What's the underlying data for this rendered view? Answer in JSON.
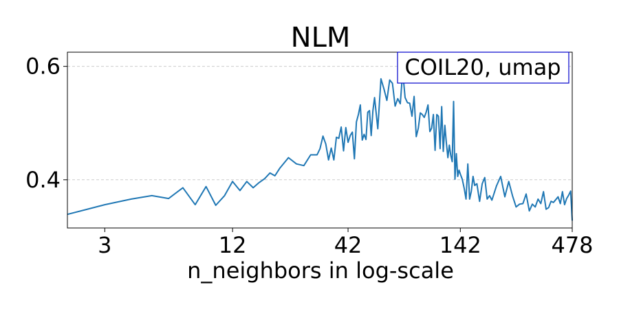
{
  "chart_data": {
    "type": "line",
    "title": "NLM",
    "xlabel": "n_neighbors in log-scale",
    "ylabel": "",
    "x_scale": "log",
    "xlim": [
      2,
      478
    ],
    "ylim": [
      0.315,
      0.625
    ],
    "x_ticks": [
      {
        "value": 3,
        "label": "3"
      },
      {
        "value": 12,
        "label": "12"
      },
      {
        "value": 42,
        "label": "42"
      },
      {
        "value": 142,
        "label": "142"
      },
      {
        "value": 478,
        "label": "478"
      }
    ],
    "y_ticks": [
      {
        "value": 0.4,
        "label": "0.4"
      },
      {
        "value": 0.6,
        "label": "0.6"
      }
    ],
    "grid": "horizontal dashed",
    "annotation": "COIL20, umap",
    "annotation_placement": "top-right",
    "line_color": "#1f77b4",
    "series": [
      {
        "x": [
          2,
          3,
          4,
          5,
          6,
          7,
          8,
          9,
          10,
          11,
          12,
          13,
          14,
          15,
          16,
          17,
          18,
          19,
          20,
          22,
          24,
          26,
          28,
          30,
          31,
          32,
          33,
          34,
          35,
          36,
          37,
          38,
          39,
          40,
          41,
          42,
          43,
          44,
          45,
          46,
          47,
          48,
          49,
          50,
          51,
          52,
          53,
          54,
          55,
          56,
          58,
          60,
          62,
          64,
          66,
          68,
          70,
          72,
          74,
          76,
          78,
          80,
          82,
          84,
          86,
          88,
          90,
          92,
          94,
          96,
          98,
          100,
          102,
          104,
          106,
          108,
          110,
          112,
          114,
          116,
          118,
          120,
          122,
          124,
          126,
          128,
          130,
          132,
          134,
          136,
          138,
          140,
          142,
          145,
          148,
          151,
          154,
          157,
          160,
          163,
          166,
          170,
          175,
          180,
          185,
          190,
          195,
          200,
          210,
          220,
          230,
          240,
          250,
          260,
          270,
          280,
          290,
          300,
          310,
          320,
          330,
          340,
          350,
          360,
          370,
          380,
          390,
          400,
          410,
          420,
          430,
          440,
          450,
          460,
          470,
          478
        ],
        "y": [
          0.339,
          0.356,
          0.366,
          0.372,
          0.367,
          0.386,
          0.356,
          0.388,
          0.355,
          0.372,
          0.397,
          0.381,
          0.397,
          0.386,
          0.395,
          0.402,
          0.412,
          0.407,
          0.42,
          0.439,
          0.428,
          0.425,
          0.444,
          0.444,
          0.455,
          0.477,
          0.463,
          0.435,
          0.456,
          0.435,
          0.475,
          0.473,
          0.493,
          0.451,
          0.492,
          0.466,
          0.478,
          0.484,
          0.437,
          0.502,
          0.515,
          0.532,
          0.47,
          0.48,
          0.471,
          0.519,
          0.522,
          0.478,
          0.522,
          0.545,
          0.49,
          0.578,
          0.56,
          0.54,
          0.576,
          0.57,
          0.53,
          0.543,
          0.534,
          0.591,
          0.545,
          0.536,
          0.535,
          0.512,
          0.547,
          0.476,
          0.491,
          0.518,
          0.515,
          0.51,
          0.519,
          0.532,
          0.485,
          0.491,
          0.515,
          0.452,
          0.515,
          0.512,
          0.455,
          0.529,
          0.45,
          0.496,
          0.465,
          0.439,
          0.461,
          0.443,
          0.432,
          0.538,
          0.401,
          0.446,
          0.406,
          0.417,
          0.41,
          0.401,
          0.385,
          0.366,
          0.428,
          0.366,
          0.38,
          0.406,
          0.39,
          0.393,
          0.362,
          0.393,
          0.404,
          0.366,
          0.372,
          0.364,
          0.389,
          0.406,
          0.37,
          0.397,
          0.372,
          0.352,
          0.357,
          0.358,
          0.375,
          0.345,
          0.357,
          0.352,
          0.366,
          0.358,
          0.379,
          0.348,
          0.351,
          0.362,
          0.36,
          0.365,
          0.37,
          0.358,
          0.379,
          0.356,
          0.367,
          0.373,
          0.38,
          0.328
        ]
      }
    ]
  }
}
